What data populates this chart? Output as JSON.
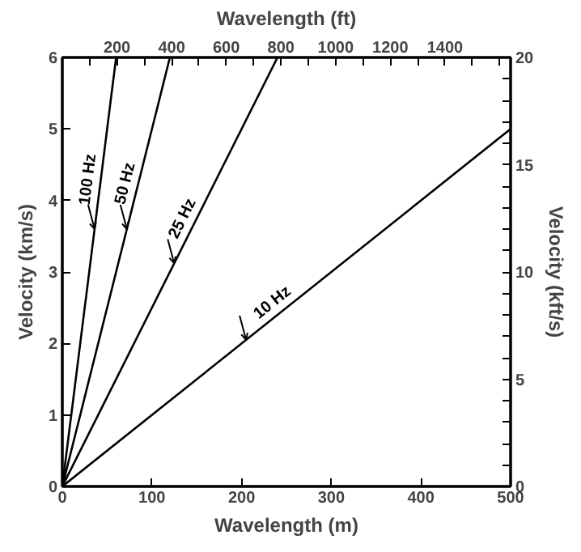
{
  "chart_data": {
    "type": "line",
    "xlabel": "Wavelength (m)",
    "x2label": "Wavelength (ft)",
    "ylabel": "Velocity (km/s)",
    "y2label": "Velocity (kft/s)",
    "xlim": [
      0,
      500
    ],
    "xticks": [
      0,
      100,
      200,
      300,
      400,
      500
    ],
    "ylim": [
      0,
      6
    ],
    "yticks": [
      0,
      1,
      2,
      3,
      4,
      5,
      6
    ],
    "x2lim": [
      0,
      1640
    ],
    "x2ticks": [
      {
        "value": 100,
        "label": null
      },
      200,
      {
        "value": 300,
        "label": null
      },
      400,
      {
        "value": 500,
        "label": null
      },
      600,
      {
        "value": 700,
        "label": null
      },
      800,
      {
        "value": 900,
        "label": null
      },
      1000,
      {
        "value": 1100,
        "label": null
      },
      1200,
      {
        "value": 1300,
        "label": null
      },
      1400,
      {
        "value": 1500,
        "label": null
      },
      {
        "value": 1600,
        "label": null
      }
    ],
    "y2lim": [
      0,
      20
    ],
    "y2ticks": [
      0,
      {
        "value": 1,
        "label": null
      },
      {
        "value": 2,
        "label": null
      },
      {
        "value": 3,
        "label": null
      },
      {
        "value": 4,
        "label": null
      },
      5,
      {
        "value": 6,
        "label": null
      },
      {
        "value": 7,
        "label": null
      },
      {
        "value": 8,
        "label": null
      },
      {
        "value": 9,
        "label": null
      },
      10,
      {
        "value": 11,
        "label": null
      },
      {
        "value": 12,
        "label": null
      },
      {
        "value": 13,
        "label": null
      },
      {
        "value": 14,
        "label": null
      },
      15,
      {
        "value": 16,
        "label": null
      },
      {
        "value": 17,
        "label": null
      },
      {
        "value": 18,
        "label": null
      },
      {
        "value": 19,
        "label": null
      },
      20
    ],
    "grid": false,
    "marker": "none",
    "line_style": "solid",
    "series": [
      {
        "name": "100 Hz",
        "color": "#000000",
        "x": [
          0,
          60
        ],
        "values": [
          0,
          6
        ]
      },
      {
        "name": "50 Hz",
        "color": "#000000",
        "x": [
          0,
          120
        ],
        "values": [
          0,
          6
        ]
      },
      {
        "name": "25 Hz",
        "color": "#000000",
        "x": [
          0,
          240
        ],
        "values": [
          0,
          6
        ]
      },
      {
        "name": "10 Hz",
        "color": "#000000",
        "x": [
          0,
          500
        ],
        "values": [
          0,
          5
        ]
      }
    ]
  }
}
